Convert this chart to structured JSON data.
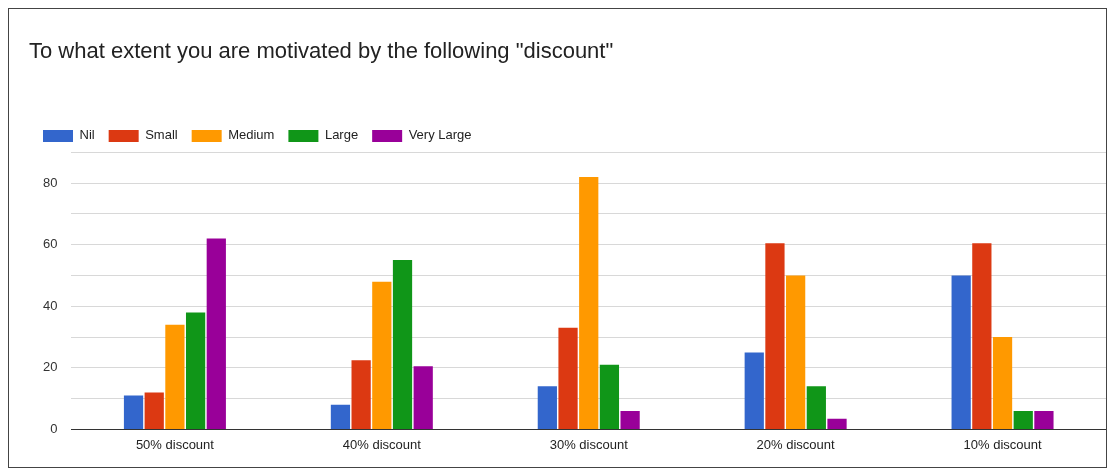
{
  "chart_data": {
    "type": "bar",
    "title": "To what extent you are motivated by the following \"discount\"",
    "categories": [
      "50% discount",
      "40% discount",
      "30% discount",
      "20% discount",
      "10% discount"
    ],
    "series": [
      {
        "name": "Nil",
        "color": "#3366cc",
        "values": [
          11,
          8,
          14,
          25,
          50
        ]
      },
      {
        "name": "Small",
        "color": "#dc3912",
        "values": [
          12,
          22.5,
          33,
          60.5,
          60.5
        ]
      },
      {
        "name": "Medium",
        "color": "#ff9900",
        "values": [
          34,
          48,
          82,
          50,
          30
        ]
      },
      {
        "name": "Large",
        "color": "#109618",
        "values": [
          38,
          55,
          21,
          14,
          6
        ]
      },
      {
        "name": "Very Large",
        "color": "#990099",
        "values": [
          62,
          20.5,
          6,
          3.5,
          6
        ]
      }
    ],
    "ylim": [
      0,
      90
    ],
    "yticks": [
      0,
      {
        "value": 10,
        "label": null
      },
      20,
      {
        "value": 30,
        "label": null
      },
      40,
      {
        "value": 50,
        "label": null
      },
      60,
      {
        "value": 70,
        "label": null
      },
      80,
      {
        "value": 90,
        "label": null
      }
    ],
    "grid": "y",
    "legend": "top left"
  }
}
